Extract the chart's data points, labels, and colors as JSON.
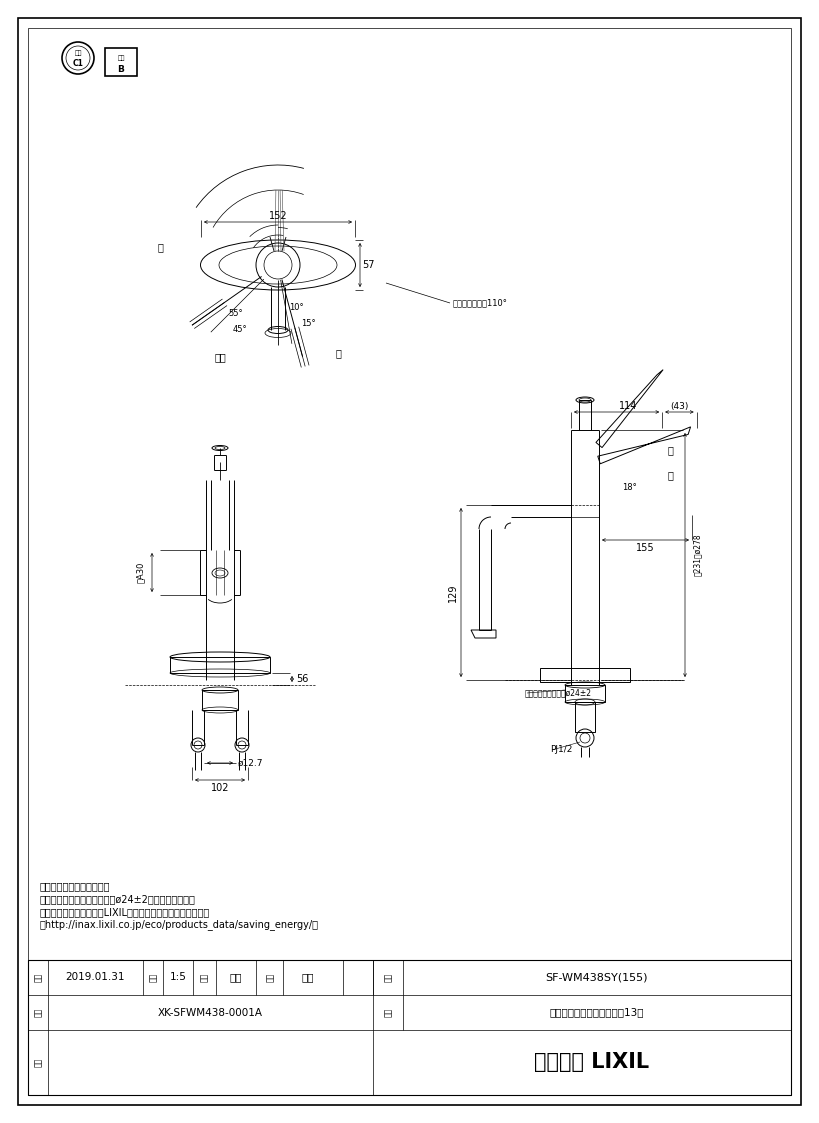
{
  "page_width": 8.19,
  "page_height": 11.23,
  "bg_color": "#ffffff",
  "line_color": "#000000",
  "title": "SF-WM438SY(155)",
  "product_name": "シングルレバー混合水栓（13）",
  "drawing_number": "XK-SFWM438-0001A",
  "date": "2019.01.31",
  "scale": "1:5",
  "maker1": "釜山",
  "maker2": "磳崎",
  "company": "株式会社 LIXIL",
  "notes": [
    "・（　）内は、参考寺法。",
    "・カウンター穴あけ寸法は、ø24±2で行って下さい。",
    "・節湯記号については、LIXILホームページを参照ください。",
    "（http://inax.lixil.co.jp/eco/products_data/saving_energy/）"
  ],
  "dim_152": "152",
  "dim_57": "57",
  "dim_55deg": "55°",
  "dim_45deg": "45°",
  "dim_10deg": "10°",
  "dim_15deg": "15°",
  "dim_114": "114",
  "dim_43": "(43)",
  "dim_129": "129",
  "dim_155_side": "155",
  "dim_18deg": "18°",
  "dim_278": "総231〜ø278",
  "dim_30": "等A30",
  "dim_56": "56",
  "dim_102": "102",
  "dim_127": "ø12.7",
  "spout_rotation": "吹水口回転範困110°",
  "yu_label": "湯",
  "mizu_label": "水",
  "kongo_label": "混合",
  "counter_hole": "カウンター取付穴径ø24±2",
  "pj12": "PJ1/2",
  "open_label1": "開",
  "close_label1": "閉",
  "label_shaku": "尺度",
  "label_sei": "製図",
  "label_ken": "検図",
  "label_hinban": "品番",
  "label_hinmei": "品名",
  "label_zuban": "図番",
  "label_biko": "備考",
  "label_hidzuke": "日付"
}
